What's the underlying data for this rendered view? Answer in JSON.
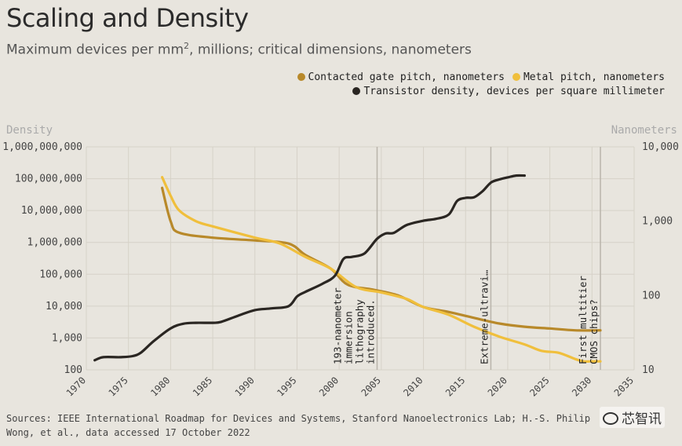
{
  "title": "Scaling and Density",
  "subtitle_main": "Maximum devices per mm",
  "subtitle_sup": "2",
  "subtitle_rest": ", millions; critical dimensions, nanometers",
  "source": "Sources: IEEE International Roadmap for Devices and Systems, Stanford Nanoelectronics Lab; H.-S. Philip Wong, et al., data accessed 17 October 2022",
  "watermark": "芯智讯",
  "colors": {
    "gate": "#b8892a",
    "metal": "#f0bf3c",
    "density": "#2a2622",
    "grid": "#d6d2c8",
    "vline": "#b9b4ab",
    "background": "#e8e5de"
  },
  "chart_data": {
    "type": "line",
    "left_axis_title": "Density",
    "right_axis_title": "Nanometers",
    "left_axis_scale": "log",
    "right_axis_scale": "log",
    "left_ylim": [
      100,
      1000000000
    ],
    "right_ylim": [
      10,
      10000
    ],
    "xlim": [
      1970,
      2035
    ],
    "left_ticks": [
      100,
      1000,
      10000,
      100000,
      1000000,
      10000000,
      100000000,
      1000000000
    ],
    "left_tick_labels": [
      "100",
      "1,000",
      "10,000",
      "100,000",
      "1,000,000",
      "10,000,000",
      "100,000,000",
      "1,000,000,000"
    ],
    "right_ticks": [
      10,
      100,
      1000,
      10000
    ],
    "right_tick_labels": [
      "10",
      "100",
      "1,000",
      "10,000"
    ],
    "x_ticks": [
      1970,
      1975,
      1980,
      1985,
      1990,
      1995,
      2000,
      2005,
      2010,
      2015,
      2020,
      2025,
      2030,
      2035
    ],
    "grid": true,
    "legend_position": "top-right",
    "legend": [
      {
        "key": "gate",
        "label": "Contacted gate pitch, nanometers"
      },
      {
        "key": "metal",
        "label": "Metal pitch, nanometers"
      },
      {
        "key": "density",
        "label": "Transistor density, devices per square millimeter"
      }
    ],
    "series": [
      {
        "key": "density",
        "name": "Transistor density, devices per square millimeter",
        "axis": "left",
        "x": [
          1971,
          1972,
          1974,
          1975.5,
          1976.5,
          1978,
          1980,
          1981.5,
          1983,
          1985,
          1986,
          1988,
          1990,
          1992,
          1994,
          1995,
          1996,
          1998,
          1999.5,
          2000.5,
          2001.5,
          2003,
          2004.5,
          2005.5,
          2006.5,
          2008,
          2010,
          2011.5,
          2013,
          2014,
          2015,
          2016,
          2017,
          2018,
          2019,
          2020,
          2021,
          2022
        ],
        "y": [
          200,
          250,
          250,
          270,
          350,
          800,
          2000,
          2800,
          3000,
          3000,
          3200,
          5000,
          7500,
          8500,
          10000,
          20000,
          28000,
          50000,
          90000,
          300000,
          350000,
          450000,
          1300000,
          1900000,
          2000000,
          3500000,
          4800000,
          5500000,
          7500000,
          20000000,
          25000000,
          26000000,
          40000000,
          75000000,
          95000000,
          110000000,
          125000000,
          125000000
        ]
      },
      {
        "key": "gate",
        "name": "Contacted gate pitch, nanometers",
        "axis": "right",
        "x": [
          1979,
          1980,
          1981,
          1985,
          1990,
          1994,
          1996,
          1999,
          2001,
          2004,
          2007,
          2010,
          2013,
          2016,
          2019,
          2022,
          2025,
          2028,
          2031
        ],
        "y": [
          2800,
          1000,
          700,
          600,
          550,
          500,
          350,
          230,
          140,
          120,
          100,
          70,
          60,
          50,
          42,
          38,
          36,
          34,
          34
        ]
      },
      {
        "key": "metal",
        "name": "Metal pitch, nanometers",
        "axis": "right",
        "x": [
          1979,
          1980,
          1981,
          1983,
          1985,
          1990,
          1993,
          1996,
          1999,
          2002,
          2005,
          2008,
          2010,
          2013,
          2016,
          2019,
          2022,
          2024,
          2026,
          2028,
          2029,
          2030,
          2031
        ],
        "y": [
          3900,
          2200,
          1400,
          1000,
          850,
          600,
          500,
          330,
          230,
          130,
          110,
          90,
          70,
          55,
          38,
          28,
          22,
          18,
          17,
          14,
          13,
          13,
          13
        ]
      }
    ],
    "annotations": [
      {
        "x": 2004.5,
        "lines": [
          "193-nanometer",
          "immersion",
          "lithography",
          "introduced."
        ]
      },
      {
        "x": 2018,
        "lines": [
          "Extreme-ultravi…"
        ]
      },
      {
        "x": 2031,
        "lines": [
          "First multitier",
          "CMOS chips?"
        ]
      }
    ]
  }
}
